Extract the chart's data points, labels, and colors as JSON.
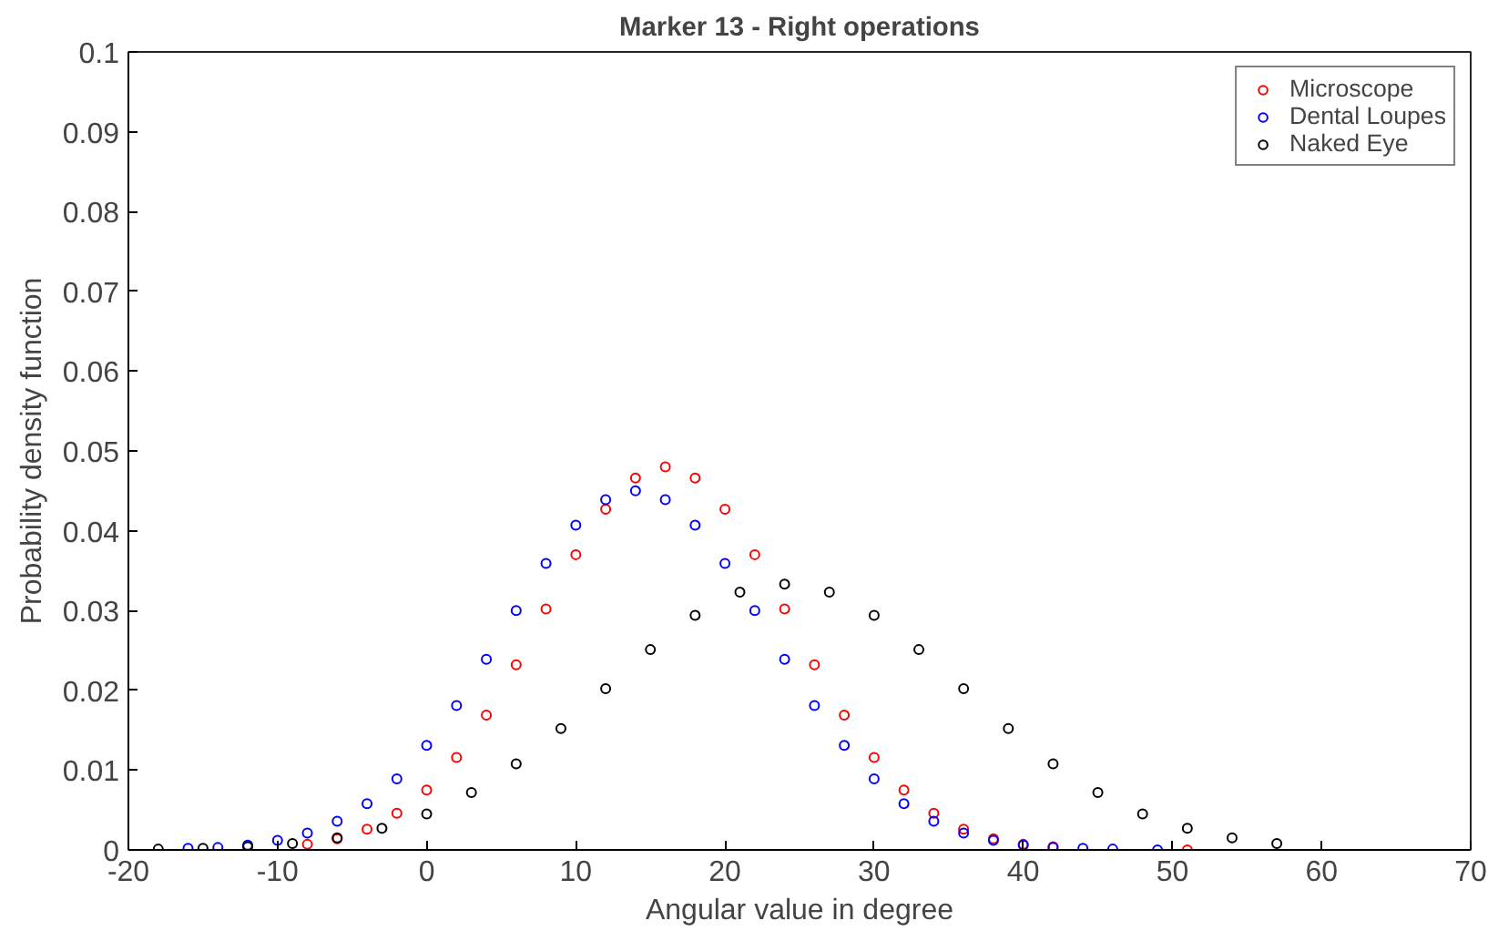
{
  "chart_data": {
    "type": "scatter",
    "title": "Marker 13 - Right operations",
    "xlabel": "Angular value in degree",
    "ylabel": "Probability density function",
    "xlim": [
      -20,
      70
    ],
    "ylim": [
      0,
      0.1
    ],
    "xticks": [
      -20,
      -10,
      0,
      10,
      20,
      30,
      40,
      50,
      60,
      70
    ],
    "yticks": [
      0,
      0.01,
      0.02,
      0.03,
      0.04,
      0.05,
      0.06,
      0.07,
      0.08,
      0.09,
      0.1
    ],
    "grid": false,
    "legend": "top right",
    "marker": "circle",
    "series": [
      {
        "name": "Microscope",
        "color": "#ff0000",
        "x": [
          -8,
          -6,
          -4,
          -2,
          0,
          2,
          4,
          6,
          8,
          10,
          12,
          14,
          16,
          18,
          20,
          22,
          24,
          26,
          28,
          30,
          32,
          34,
          36,
          38,
          40,
          42,
          51
        ],
        "values": [
          0.0007,
          0.0014,
          0.0026,
          0.0046,
          0.0075,
          0.0116,
          0.0169,
          0.0232,
          0.0302,
          0.037,
          0.0427,
          0.0466,
          0.048,
          0.0466,
          0.0427,
          0.037,
          0.0302,
          0.0232,
          0.0169,
          0.0116,
          0.0075,
          0.0046,
          0.0026,
          0.0014,
          0.0007,
          0.0004,
          0
        ]
      },
      {
        "name": "Dental Loupes",
        "color": "#0000ff",
        "x": [
          -16,
          -14,
          -12,
          -10,
          -8,
          -6,
          -4,
          -2,
          0,
          2,
          4,
          6,
          8,
          10,
          12,
          14,
          16,
          18,
          20,
          22,
          24,
          26,
          28,
          30,
          32,
          34,
          36,
          38,
          40,
          42,
          44,
          46,
          49
        ],
        "values": [
          0.0002,
          0.0003,
          0.0006,
          0.0012,
          0.0021,
          0.0036,
          0.0058,
          0.0089,
          0.0131,
          0.0181,
          0.0239,
          0.03,
          0.0359,
          0.0407,
          0.0439,
          0.045,
          0.0439,
          0.0407,
          0.0359,
          0.03,
          0.0239,
          0.0181,
          0.0131,
          0.0089,
          0.0058,
          0.0036,
          0.0021,
          0.0012,
          0.0006,
          0.0003,
          0.0002,
          0.0001,
          0
        ]
      },
      {
        "name": "Naked Eye",
        "color": "#000000",
        "x": [
          -18,
          -15,
          -12,
          -9,
          -6,
          -3,
          0,
          3,
          6,
          9,
          12,
          15,
          18,
          21,
          24,
          27,
          30,
          33,
          36,
          39,
          42,
          45,
          48,
          51,
          54,
          57
        ],
        "values": [
          0.0001,
          0.0002,
          0.0004,
          0.0008,
          0.0015,
          0.0027,
          0.0045,
          0.0072,
          0.0108,
          0.0152,
          0.0202,
          0.0251,
          0.0294,
          0.0323,
          0.0333,
          0.0323,
          0.0294,
          0.0251,
          0.0202,
          0.0152,
          0.0108,
          0.0072,
          0.0045,
          0.0027,
          0.0015,
          0.0008
        ]
      }
    ]
  }
}
